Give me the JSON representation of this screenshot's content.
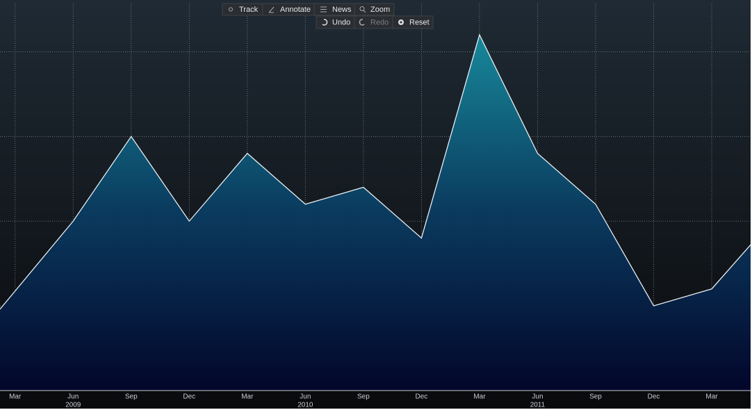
{
  "toolbar": {
    "tools": [
      "Track",
      "Annotate",
      "News",
      "Zoom"
    ],
    "history": [
      "Undo",
      "Redo",
      "Reset"
    ]
  },
  "chart_data": {
    "type": "area",
    "x": [
      -0.26,
      1,
      2,
      3,
      4,
      5,
      6,
      7,
      8,
      9,
      10,
      11,
      12,
      12.67
    ],
    "series": [
      {
        "color": "#e8eef2",
        "values": [
          0.96,
          2.0,
          3.0,
          2.0,
          2.8,
          2.2,
          2.4,
          1.8,
          4.2,
          2.8,
          2.2,
          1.0,
          1.2,
          1.72
        ]
      }
    ],
    "xlim": [
      -0.26,
      12.67
    ],
    "xticks": [
      {
        "value": 0,
        "label": "Mar"
      },
      {
        "value": 1,
        "label": "Jun"
      },
      {
        "value": 2,
        "label": "Sep"
      },
      {
        "value": 3,
        "label": "Dec"
      },
      {
        "value": 4,
        "label": "Mar"
      },
      {
        "value": 5,
        "label": "Jun"
      },
      {
        "value": 6,
        "label": "Sep"
      },
      {
        "value": 7,
        "label": "Dec"
      },
      {
        "value": 8,
        "label": "Mar"
      },
      {
        "value": 9,
        "label": "Jun"
      },
      {
        "value": 10,
        "label": "Sep"
      },
      {
        "value": 11,
        "label": "Dec"
      },
      {
        "value": 12,
        "label": "Mar"
      }
    ],
    "year_ticks": [
      {
        "value": 1,
        "label": "2009"
      },
      {
        "value": 5,
        "label": "2010"
      },
      {
        "value": 9,
        "label": "2011"
      }
    ],
    "ylim": [
      0,
      4.57
    ],
    "yticks": [
      1,
      2,
      3,
      4
    ],
    "grid": true
  }
}
